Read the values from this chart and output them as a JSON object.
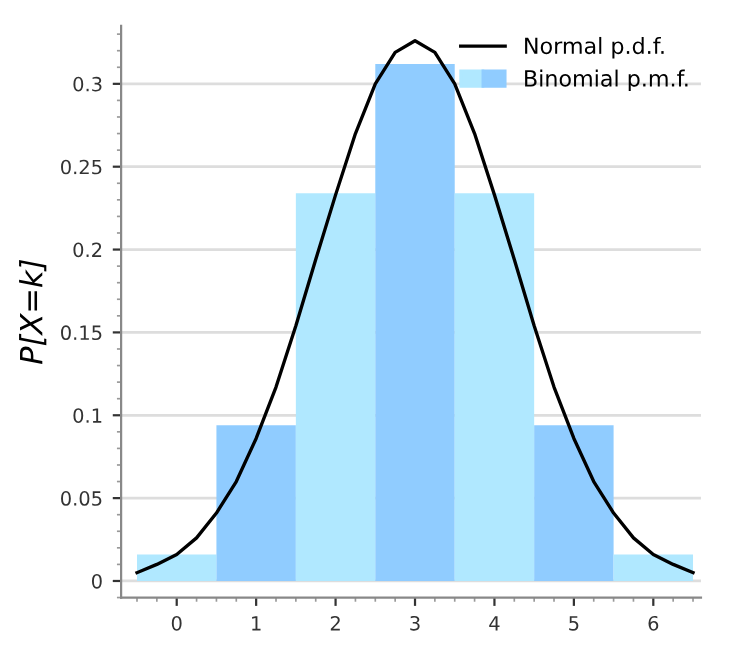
{
  "chart_data": {
    "type": "histogram",
    "ylabel": "P[X=k]",
    "xlim": [
      -0.7,
      6.6
    ],
    "ylim": [
      -0.01,
      0.335
    ],
    "xticks": [
      0,
      1,
      2,
      3,
      4,
      5,
      6
    ],
    "yticks": [
      0,
      0.05,
      0.1,
      0.15,
      0.2,
      0.25,
      0.3
    ],
    "grid": "y",
    "legend": "top right",
    "series": [
      {
        "name": "Normal p.d.f.",
        "type": "line",
        "color": "#000000",
        "x": [
          -0.5,
          -0.25,
          0,
          0.25,
          0.5,
          0.75,
          1,
          1.25,
          1.5,
          1.75,
          2,
          2.25,
          2.5,
          2.75,
          3,
          3.25,
          3.5,
          3.75,
          4,
          4.25,
          4.5,
          4.75,
          5,
          5.25,
          5.5,
          5.75,
          6,
          6.25,
          6.5
        ],
        "values": [
          0.005,
          0.01,
          0.016,
          0.026,
          0.041,
          0.06,
          0.086,
          0.117,
          0.154,
          0.194,
          0.233,
          0.27,
          0.3,
          0.319,
          0.326,
          0.319,
          0.3,
          0.27,
          0.233,
          0.194,
          0.154,
          0.117,
          0.086,
          0.06,
          0.041,
          0.026,
          0.016,
          0.01,
          0.005
        ]
      },
      {
        "name": "Binomial p.m.f.",
        "bins": [
          -0.5,
          0.5,
          1.5,
          2.5,
          3.5,
          4.5,
          5.5,
          6.5
        ],
        "values": [
          0.016,
          0.094,
          0.234,
          0.312,
          0.234,
          0.094,
          0.016
        ],
        "colors": [
          "#b0e8ff",
          "#90ccff",
          "#b0e8ff",
          "#90ccff",
          "#b0e8ff",
          "#90ccff",
          "#b0e8ff"
        ]
      }
    ]
  }
}
